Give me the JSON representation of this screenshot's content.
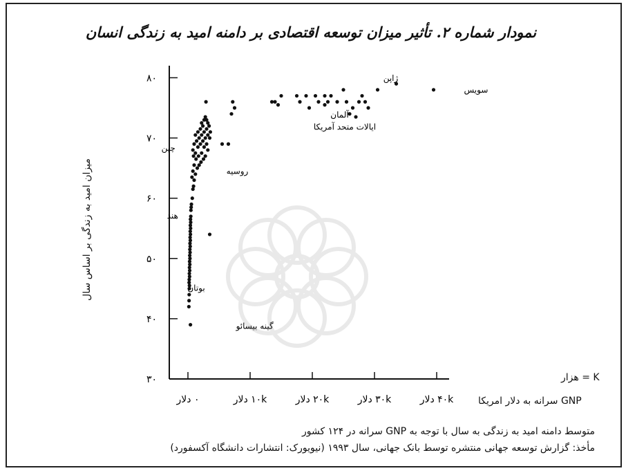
{
  "title": "نمودار شماره ۲. تأثیر میزان توسعه اقتصادی بر دامنه امید به زندگی انسان",
  "y_axis_label": "میزان امید به زندگی بر اساس سال",
  "x_axis_label": "GNP سرانه به دلار امریکا",
  "unit_note": "K = هزار",
  "caption_line1": "متوسط دامنه امید به زندگی به سال با توجه به GNP سرانه در ۱۲۴ کشور",
  "caption_line2": "مأخذ: گزارش توسعه جهانی منتشره توسط بانک جهانی، سال ۱۹۹۳ (نیویورک: انتشارات دانشگاه آکسفورد)",
  "chart_data": {
    "type": "scatter",
    "title": "نمودار شماره ۲. تأثیر میزان توسعه اقتصادی بر دامنه امید به زندگی انسان",
    "xlabel": "GNP سرانه به دلار امریکا",
    "ylabel": "میزان امید به زندگی بر اساس سال",
    "xlim": [
      -3000,
      42000
    ],
    "ylim": [
      30,
      82
    ],
    "x_ticks": [
      0,
      10000,
      20000,
      30000,
      40000
    ],
    "x_tick_labels": [
      "۰ دلار",
      "۱۰k دلار",
      "۲۰k دلار",
      "۳۰k دلار",
      "۴۰k دلار"
    ],
    "y_ticks": [
      30,
      40,
      50,
      60,
      70,
      80
    ],
    "y_tick_labels": [
      "۳۰",
      "۴۰",
      "۵۰",
      "۶۰",
      "۷۰",
      "۸۰"
    ],
    "grid": false,
    "points": [
      {
        "x": 150,
        "y": 42
      },
      {
        "x": 180,
        "y": 43
      },
      {
        "x": 200,
        "y": 44
      },
      {
        "x": 220,
        "y": 45
      },
      {
        "x": 240,
        "y": 45.5
      },
      {
        "x": 190,
        "y": 46
      },
      {
        "x": 210,
        "y": 46.5
      },
      {
        "x": 260,
        "y": 47
      },
      {
        "x": 230,
        "y": 47.5
      },
      {
        "x": 280,
        "y": 48
      },
      {
        "x": 250,
        "y": 48.5
      },
      {
        "x": 300,
        "y": 49
      },
      {
        "x": 270,
        "y": 49.5
      },
      {
        "x": 320,
        "y": 50
      },
      {
        "x": 290,
        "y": 50.5
      },
      {
        "x": 340,
        "y": 51
      },
      {
        "x": 310,
        "y": 51.5
      },
      {
        "x": 360,
        "y": 52
      },
      {
        "x": 330,
        "y": 52.5
      },
      {
        "x": 380,
        "y": 53
      },
      {
        "x": 350,
        "y": 53.5
      },
      {
        "x": 400,
        "y": 54
      },
      {
        "x": 370,
        "y": 54.5
      },
      {
        "x": 420,
        "y": 55
      },
      {
        "x": 390,
        "y": 55.5
      },
      {
        "x": 440,
        "y": 56
      },
      {
        "x": 410,
        "y": 56.5
      },
      {
        "x": 460,
        "y": 57
      },
      {
        "x": 480,
        "y": 58
      },
      {
        "x": 520,
        "y": 58.5
      },
      {
        "x": 560,
        "y": 59
      },
      {
        "x": 700,
        "y": 60
      },
      {
        "x": 800,
        "y": 61.5
      },
      {
        "x": 900,
        "y": 62
      },
      {
        "x": 1000,
        "y": 63
      },
      {
        "x": 650,
        "y": 63.5
      },
      {
        "x": 1200,
        "y": 64
      },
      {
        "x": 800,
        "y": 64.5
      },
      {
        "x": 1500,
        "y": 65
      },
      {
        "x": 1000,
        "y": 65.5
      },
      {
        "x": 1800,
        "y": 65.5
      },
      {
        "x": 2100,
        "y": 66
      },
      {
        "x": 1300,
        "y": 66.5
      },
      {
        "x": 2500,
        "y": 66.5
      },
      {
        "x": 900,
        "y": 67
      },
      {
        "x": 1700,
        "y": 67
      },
      {
        "x": 2800,
        "y": 67
      },
      {
        "x": 1200,
        "y": 67.5
      },
      {
        "x": 2200,
        "y": 67.5
      },
      {
        "x": 3200,
        "y": 68
      },
      {
        "x": 800,
        "y": 68
      },
      {
        "x": 1600,
        "y": 68.5
      },
      {
        "x": 2600,
        "y": 68.5
      },
      {
        "x": 1000,
        "y": 69
      },
      {
        "x": 2000,
        "y": 69
      },
      {
        "x": 3000,
        "y": 69
      },
      {
        "x": 1400,
        "y": 69.5
      },
      {
        "x": 2400,
        "y": 69.5
      },
      {
        "x": 1800,
        "y": 70
      },
      {
        "x": 2800,
        "y": 70
      },
      {
        "x": 3500,
        "y": 70
      },
      {
        "x": 1200,
        "y": 70.5
      },
      {
        "x": 2200,
        "y": 70.5
      },
      {
        "x": 3200,
        "y": 70.5
      },
      {
        "x": 1600,
        "y": 71
      },
      {
        "x": 2600,
        "y": 71
      },
      {
        "x": 3600,
        "y": 71
      },
      {
        "x": 2000,
        "y": 71.5
      },
      {
        "x": 3000,
        "y": 71.5
      },
      {
        "x": 2400,
        "y": 72
      },
      {
        "x": 3400,
        "y": 72
      },
      {
        "x": 2200,
        "y": 72.5
      },
      {
        "x": 3200,
        "y": 72.5
      },
      {
        "x": 2600,
        "y": 73
      },
      {
        "x": 3000,
        "y": 73
      },
      {
        "x": 2800,
        "y": 73.5
      },
      {
        "x": 2900,
        "y": 76
      },
      {
        "x": 3500,
        "y": 54
      },
      {
        "x": 5500,
        "y": 69
      },
      {
        "x": 6500,
        "y": 69
      },
      {
        "x": 7000,
        "y": 74
      },
      {
        "x": 7200,
        "y": 76
      },
      {
        "x": 7500,
        "y": 75
      },
      {
        "x": 13500,
        "y": 76
      },
      {
        "x": 14000,
        "y": 76
      },
      {
        "x": 14500,
        "y": 75.5
      },
      {
        "x": 15000,
        "y": 77
      },
      {
        "x": 17500,
        "y": 77
      },
      {
        "x": 18000,
        "y": 76
      },
      {
        "x": 19000,
        "y": 77
      },
      {
        "x": 19500,
        "y": 75
      },
      {
        "x": 20500,
        "y": 77
      },
      {
        "x": 21000,
        "y": 76
      },
      {
        "x": 22000,
        "y": 77
      },
      {
        "x": 22500,
        "y": 76
      },
      {
        "x": 23000,
        "y": 77
      },
      {
        "x": 24000,
        "y": 76
      },
      {
        "x": 25500,
        "y": 76
      },
      {
        "x": 26500,
        "y": 75
      },
      {
        "x": 27500,
        "y": 76
      },
      {
        "x": 28000,
        "y": 77
      },
      {
        "x": 28500,
        "y": 76
      },
      {
        "x": 29000,
        "y": 75
      },
      {
        "x": 30500,
        "y": 78
      },
      {
        "x": 33500,
        "y": 79
      },
      {
        "x": 39500,
        "y": 78
      },
      {
        "x": 26000,
        "y": 74
      },
      {
        "x": 27000,
        "y": 73.5
      },
      {
        "x": 25000,
        "y": 78
      },
      {
        "x": 22000,
        "y": 75.5
      },
      {
        "x": 400,
        "y": 39
      }
    ],
    "annotations": [
      {
        "text": "سویس",
        "x": 39500,
        "y": 78
      },
      {
        "text": "ژاپن",
        "x": 33500,
        "y": 79
      },
      {
        "text": "آلمان",
        "x": 27500,
        "y": 75
      },
      {
        "text": "ایالات متحد آمریکا",
        "x": 23000,
        "y": 73
      },
      {
        "text": "چین",
        "x": 400,
        "y": 69.5
      },
      {
        "text": "روسیه",
        "x": 5500,
        "y": 67
      },
      {
        "text": "هند",
        "x": 400,
        "y": 58
      },
      {
        "text": "بوتان",
        "x": 150,
        "y": 46
      },
      {
        "text": "گینه بیسائو",
        "x": 400,
        "y": 39
      }
    ]
  }
}
